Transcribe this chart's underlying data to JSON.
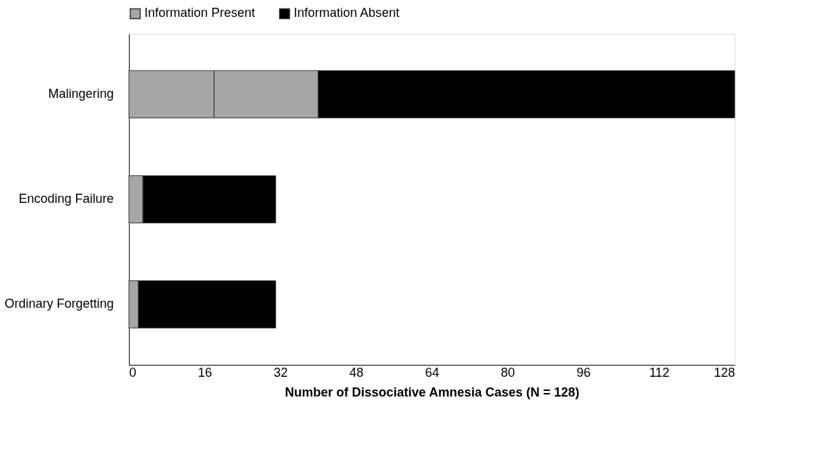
{
  "chart_data": {
    "type": "bar",
    "orientation": "horizontal",
    "stacked": true,
    "categories": [
      "Malingering",
      "Encoding Failure",
      "Ordinary Forgetting"
    ],
    "xlabel": "Number of Dissociative Amnesia Cases (N = 128)",
    "xlim": [
      0,
      128
    ],
    "xticks": [
      0,
      16,
      32,
      48,
      64,
      80,
      96,
      112,
      128
    ],
    "grid": false,
    "legend": "top",
    "series": [
      {
        "name": "Information Present",
        "color": "#a6a6a6",
        "values": [
          18,
          3,
          2
        ]
      },
      {
        "color": "#a6a6a6",
        "values": [
          22,
          0,
          0
        ]
      },
      {
        "name": "Information Absent",
        "color": "#000000",
        "values": [
          88,
          28,
          29
        ]
      }
    ]
  }
}
